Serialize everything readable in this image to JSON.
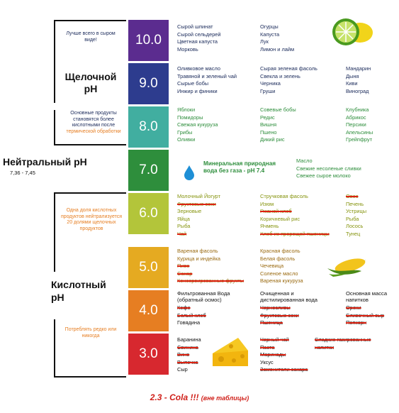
{
  "left_labels": {
    "note_10": "Лучше всего в сыром виде!",
    "alkaline": "Щелочной pH",
    "note_8": "Основные продукты становятся более кислотными после",
    "note_8_orange": "термической обработки",
    "neutral": "Нейтральный pH",
    "neutral_range": "7,36 - 7,45",
    "note_6": "Одна доля кислотных продуктов нейтрализуется 20 долями щелочных продуктов",
    "acidic": "Кислотный pH",
    "note_3": "Потреблять редко или никогда"
  },
  "colors": {
    "ph10": "#5b2c8f",
    "ph9": "#2d3c8e",
    "ph8": "#41aea0",
    "ph7": "#2e8e3c",
    "ph6": "#b3c53a",
    "ph5": "#e5aa21",
    "ph4": "#e67e22",
    "ph3": "#d7282f",
    "text_dark": "#1a2a5a",
    "text_green": "#2e8e3c",
    "text_olive": "#86940f",
    "text_amber": "#9a6a10",
    "strike_red": "#d21f1a"
  },
  "rows": [
    {
      "ph": "10.0",
      "c1": [
        {
          "t": "Сырой шпинат"
        },
        {
          "t": "Сырой сельдерей"
        },
        {
          "t": "Цветная капуста"
        },
        {
          "t": "Морковь"
        }
      ],
      "c2": [
        {
          "t": "Огурцы"
        },
        {
          "t": "Капуста"
        },
        {
          "t": "Лук"
        },
        {
          "t": "Лимон и лайм"
        }
      ]
    },
    {
      "ph": "9.0",
      "c1": [
        {
          "t": "Оливковое масло"
        },
        {
          "t": "Травяной и зеленый чай"
        },
        {
          "t": "Сырые бобы"
        },
        {
          "t": "Инжир и финики"
        }
      ],
      "c2": [
        {
          "t": "Сырая зеленая фасоль"
        },
        {
          "t": "Свекла и зелень"
        },
        {
          "t": "Черника"
        },
        {
          "t": "Груши"
        }
      ],
      "c3": [
        {
          "t": "Мандарин"
        },
        {
          "t": "Дыня"
        },
        {
          "t": "Киви"
        },
        {
          "t": "Виноград"
        }
      ]
    },
    {
      "ph": "8.0",
      "c1": [
        {
          "t": "Яблоки"
        },
        {
          "t": "Помидоры"
        },
        {
          "t": "Свежая кукуруза"
        },
        {
          "t": "Грибы"
        },
        {
          "t": "Оливки"
        }
      ],
      "c2": [
        {
          "t": "Совевые бобы"
        },
        {
          "t": "Редис"
        },
        {
          "t": "Вишня"
        },
        {
          "t": "Пшено"
        },
        {
          "t": "Дикий рис"
        }
      ],
      "c3": [
        {
          "t": "Клубника"
        },
        {
          "t": "Абрикос"
        },
        {
          "t": "Персики"
        },
        {
          "t": "Апельсины"
        },
        {
          "t": "Грейпфрут"
        }
      ]
    },
    {
      "ph": "7.0",
      "mid": "Минеральная природная вода без газа - pH 7.4",
      "c3": [
        {
          "t": "Масло"
        },
        {
          "t": "Свежие несоленые сливки"
        },
        {
          "t": "Свежее сырое молоко"
        }
      ]
    },
    {
      "ph": "6.0",
      "c1": [
        {
          "t": "Молочный Йогурт"
        },
        {
          "t": "Фруктовые соки",
          "s": true
        },
        {
          "t": "Зерновые"
        },
        {
          "t": "Яйца"
        },
        {
          "t": "Рыба"
        },
        {
          "t": "Чай",
          "s": true
        }
      ],
      "c2": [
        {
          "t": "Стручковая фасоль"
        },
        {
          "t": "Изюм"
        },
        {
          "t": "Ржаной хлеб",
          "s": true
        },
        {
          "t": "Коричневый рис"
        },
        {
          "t": "Ячмень"
        },
        {
          "t": "Хлеб из пророщей пшеницы",
          "s": true
        }
      ],
      "c3": [
        {
          "t": "Овес",
          "s": true
        },
        {
          "t": "Печень"
        },
        {
          "t": "Устрицы"
        },
        {
          "t": "Рыба"
        },
        {
          "t": "Лосось"
        },
        {
          "t": "Тунец"
        }
      ]
    },
    {
      "ph": "5.0",
      "c1": [
        {
          "t": "Вареная фасоль"
        },
        {
          "t": "Курица и индейка"
        },
        {
          "t": "Пиво",
          "s": true
        },
        {
          "t": "Сахар",
          "s": true
        },
        {
          "t": "Консервированные фрукты",
          "s": true
        }
      ],
      "c2": [
        {
          "t": "Красная фасоль"
        },
        {
          "t": "Белая фасоль"
        },
        {
          "t": "Чечевица"
        },
        {
          "t": "Соленое масло"
        },
        {
          "t": "Вареная кукуруза"
        }
      ]
    },
    {
      "ph": "4.0",
      "h1": "Фильтрованная Вода (обратный осмос)",
      "h2": "Очищенная и дистилированная вода",
      "h3": "Основная масса напитков",
      "c1": [
        {
          "t": "Кофе",
          "s": true
        },
        {
          "t": "Белый хлеб",
          "s": true
        },
        {
          "t": "Говядина"
        }
      ],
      "c2": [
        {
          "t": "Черносливы",
          "s": true
        },
        {
          "t": "Фруктовые соки",
          "s": true
        },
        {
          "t": "Пшеница",
          "s": true
        }
      ],
      "c3": [
        {
          "t": "Орехи",
          "s": true
        },
        {
          "t": "Сливочный сыр",
          "s": true
        },
        {
          "t": "Попкорн",
          "s": true
        }
      ]
    },
    {
      "ph": "3.0",
      "c1": [
        {
          "t": "Баранина"
        },
        {
          "t": "Свинина",
          "s": true
        },
        {
          "t": "Вино",
          "s": true
        },
        {
          "t": "Выпечка",
          "s": true
        },
        {
          "t": "Сыр"
        }
      ],
      "c2": [
        {
          "t": "Черный чай",
          "s": true
        },
        {
          "t": "Паста",
          "s": true
        },
        {
          "t": "Маринады",
          "s": true
        },
        {
          "t": "Уксус"
        },
        {
          "t": "Заменители сахара",
          "s": true
        }
      ],
      "c3": [
        {
          "t": "Сладкие газированные напитки",
          "s": true
        }
      ]
    }
  ],
  "footer": {
    "main": "2.3  - Cola !!!",
    "sub": "(вне таблицы)"
  },
  "icons": [
    "lime-icon",
    "water-drop-icon",
    "corn-icon",
    "cheese-icon"
  ]
}
